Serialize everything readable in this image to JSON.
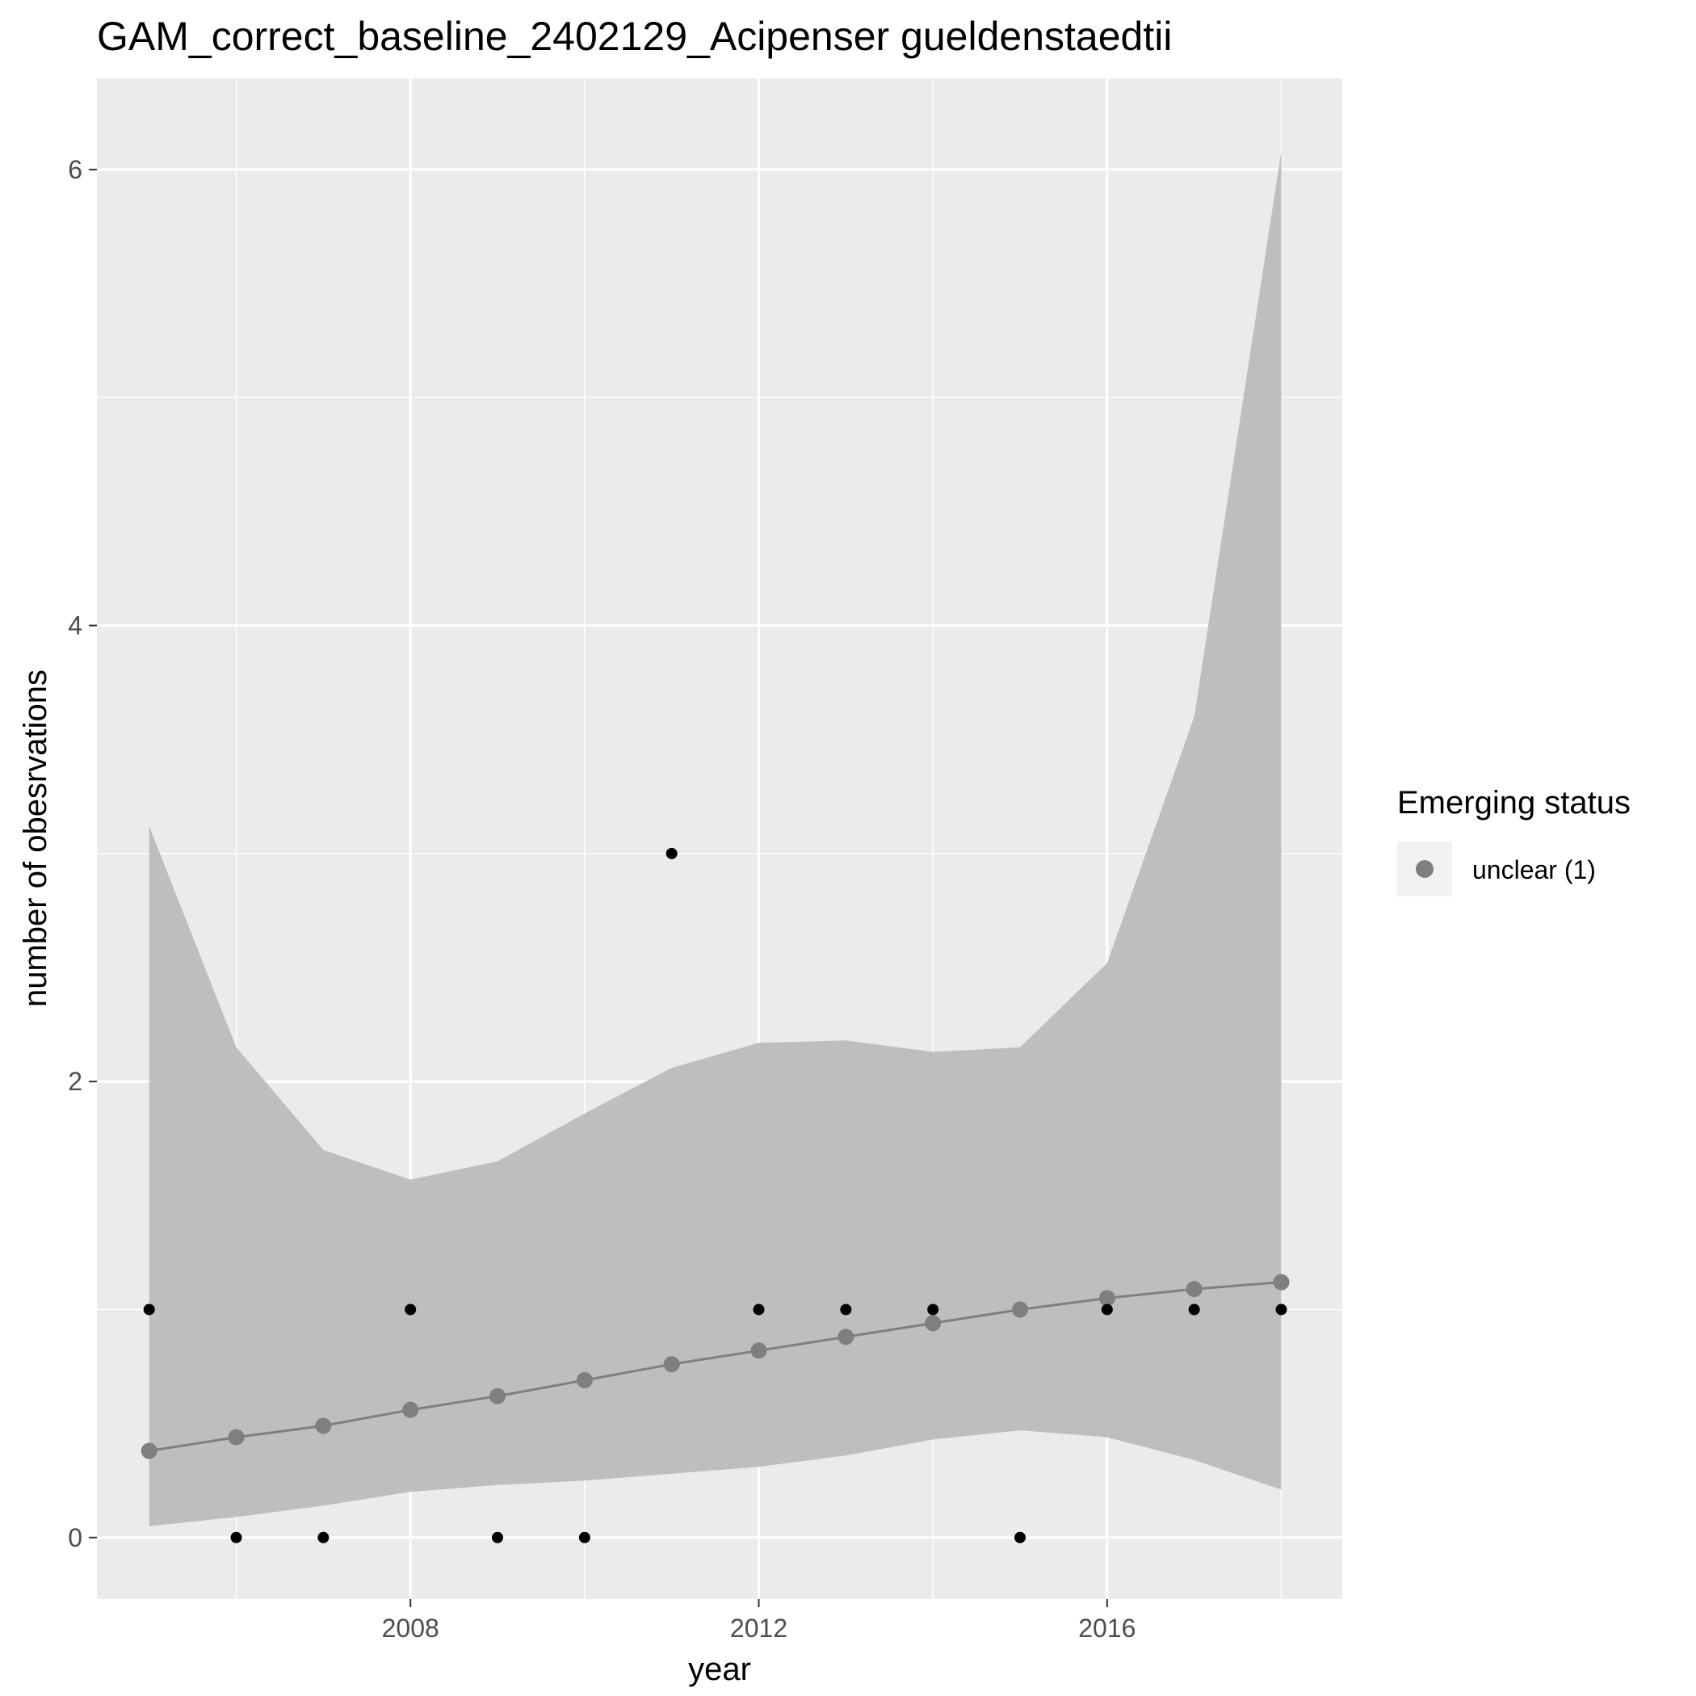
{
  "chart_data": {
    "type": "line",
    "title": "GAM_correct_baseline_2402129_Acipenser gueldenstaedtii",
    "xlabel": "year",
    "ylabel": "number of obesrvations",
    "xlim": [
      2004.4,
      2018.7
    ],
    "ylim": [
      -0.27,
      6.4
    ],
    "x_ticks": [
      2008,
      2012,
      2016
    ],
    "y_ticks": [
      0,
      2,
      4,
      6
    ],
    "grid": true,
    "background_color": "#ebebeb",
    "ribbon_color": "#bebebe",
    "fit_line_color": "#7f7f7f",
    "observation_color": "#000000",
    "legend": {
      "title": "Emerging status",
      "position": "right",
      "entries": [
        {
          "label": "unclear (1)",
          "color": "#7f7f7f"
        }
      ]
    },
    "observations": {
      "x": [
        2005,
        2006,
        2007,
        2008,
        2009,
        2010,
        2011,
        2012,
        2013,
        2014,
        2015,
        2016,
        2017,
        2018
      ],
      "y": [
        1,
        0,
        0,
        1,
        0,
        0,
        3,
        1,
        1,
        1,
        0,
        1,
        1,
        1
      ]
    },
    "series": [
      {
        "name": "unclear (1)",
        "x": [
          2005,
          2006,
          2007,
          2008,
          2009,
          2010,
          2011,
          2012,
          2013,
          2014,
          2015,
          2016,
          2017,
          2018
        ],
        "fit": [
          0.38,
          0.44,
          0.49,
          0.56,
          0.62,
          0.69,
          0.76,
          0.82,
          0.88,
          0.94,
          1.0,
          1.05,
          1.09,
          1.12
        ],
        "lower": [
          0.05,
          0.09,
          0.14,
          0.2,
          0.23,
          0.25,
          0.28,
          0.31,
          0.36,
          0.43,
          0.47,
          0.44,
          0.34,
          0.21
        ],
        "upper": [
          3.12,
          2.15,
          1.7,
          1.57,
          1.65,
          1.86,
          2.06,
          2.17,
          2.18,
          2.13,
          2.15,
          2.52,
          3.6,
          6.08
        ]
      }
    ]
  }
}
